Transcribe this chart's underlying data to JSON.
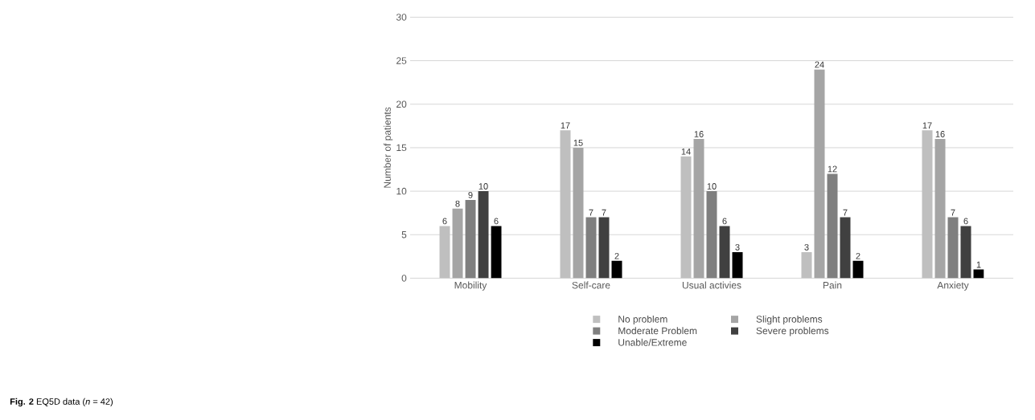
{
  "chart_data": {
    "type": "bar",
    "ylabel": "Number of patients",
    "categories": [
      "Mobility",
      "Self-care",
      "Usual activies",
      "Pain",
      "Anxiety"
    ],
    "series": [
      {
        "name": "No problem",
        "color": "#bfbfbf",
        "values": [
          6,
          17,
          14,
          3,
          17
        ]
      },
      {
        "name": "Slight problems",
        "color": "#a5a5a5",
        "values": [
          8,
          15,
          16,
          24,
          16
        ]
      },
      {
        "name": "Moderate Problem",
        "color": "#7f7f7f",
        "values": [
          9,
          7,
          10,
          12,
          7
        ]
      },
      {
        "name": "Severe problems",
        "color": "#404040",
        "values": [
          10,
          7,
          6,
          7,
          6
        ]
      },
      {
        "name": "Unable/Extreme",
        "color": "#000000",
        "values": [
          6,
          2,
          3,
          2,
          1
        ]
      }
    ],
    "ylim": [
      0,
      30
    ],
    "yticks": [
      0,
      5,
      10,
      15,
      20,
      25,
      30
    ],
    "grid": "y",
    "legend": "bottom",
    "data_labels": true,
    "annotations": [
      "**Fig. 2**  EQ5D data (*n* = 42)"
    ]
  }
}
